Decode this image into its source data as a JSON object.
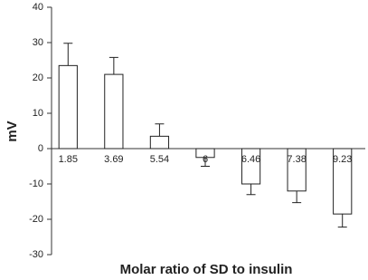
{
  "chart_data": {
    "type": "bar",
    "categories": [
      "1.85",
      "3.69",
      "5.54",
      "6",
      "6.46",
      "7.38",
      "9.23"
    ],
    "values": [
      23.5,
      21,
      3.5,
      -2.5,
      -10,
      -12,
      -18.5
    ],
    "errors": [
      6.3,
      4.8,
      3.5,
      2.5,
      3,
      3.3,
      3.7
    ],
    "color": "#ffffff",
    "ylim": [
      -30,
      40
    ],
    "yticks": [
      -30,
      -20,
      -10,
      0,
      10,
      20,
      30,
      40
    ],
    "y_label": "mV",
    "x_label": "Molar ratio of SD to insulin"
  }
}
